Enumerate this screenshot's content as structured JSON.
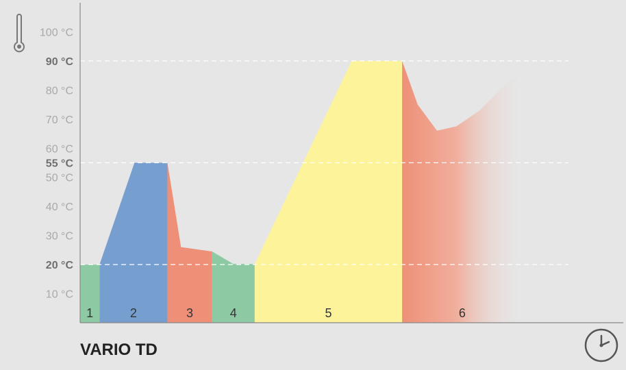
{
  "chart_data": {
    "type": "area",
    "title": "VARIO TD",
    "y_unit": "°C",
    "ylim": [
      0,
      110
    ],
    "y_ticks": [
      {
        "value": 100,
        "label": "100 °C",
        "major": false
      },
      {
        "value": 90,
        "label": "90 °C",
        "major": true
      },
      {
        "value": 80,
        "label": "80 °C",
        "major": false
      },
      {
        "value": 70,
        "label": "70 °C",
        "major": false
      },
      {
        "value": 60,
        "label": "60 °C",
        "major": false
      },
      {
        "value": 55,
        "label": "55 °C",
        "major": true
      },
      {
        "value": 50,
        "label": "50 °C",
        "major": false
      },
      {
        "value": 40,
        "label": "40 °C",
        "major": false
      },
      {
        "value": 30,
        "label": "30 °C",
        "major": false
      },
      {
        "value": 20,
        "label": "20 °C",
        "major": true
      },
      {
        "value": 10,
        "label": "10 °C",
        "major": false
      }
    ],
    "reference_lines": [
      90,
      55,
      20
    ],
    "x_axis": {
      "icon": "clock-icon",
      "labels_shown": false
    },
    "y_axis": {
      "icon": "thermometer-icon"
    },
    "segments": [
      {
        "label": "1",
        "color": "#8dcaa3",
        "points": [
          [
            0,
            20
          ],
          [
            1,
            20
          ]
        ]
      },
      {
        "label": "2",
        "color": "#769fd0",
        "points": [
          [
            1,
            20
          ],
          [
            2.8,
            55
          ],
          [
            4.5,
            55
          ]
        ]
      },
      {
        "label": "3",
        "color": "#ee9077",
        "points": [
          [
            4.5,
            55
          ],
          [
            5.2,
            26
          ],
          [
            6.8,
            24.5
          ]
        ]
      },
      {
        "label": "4",
        "color": "#8dcaa3",
        "points": [
          [
            6.8,
            24.5
          ],
          [
            7.9,
            20.2
          ],
          [
            9,
            20.2
          ]
        ]
      },
      {
        "label": "5",
        "color": "#fdf39a",
        "points": [
          [
            9,
            20.2
          ],
          [
            14,
            90
          ],
          [
            16.6,
            90
          ]
        ]
      },
      {
        "label": "6",
        "color": "#ee9077",
        "fade": true,
        "points": [
          [
            16.6,
            90
          ],
          [
            17.4,
            75
          ],
          [
            18.4,
            66
          ],
          [
            19.4,
            67.5
          ],
          [
            20.6,
            73
          ],
          [
            21.8,
            81
          ],
          [
            22.8,
            87.5
          ]
        ]
      }
    ],
    "x_max": 28
  }
}
